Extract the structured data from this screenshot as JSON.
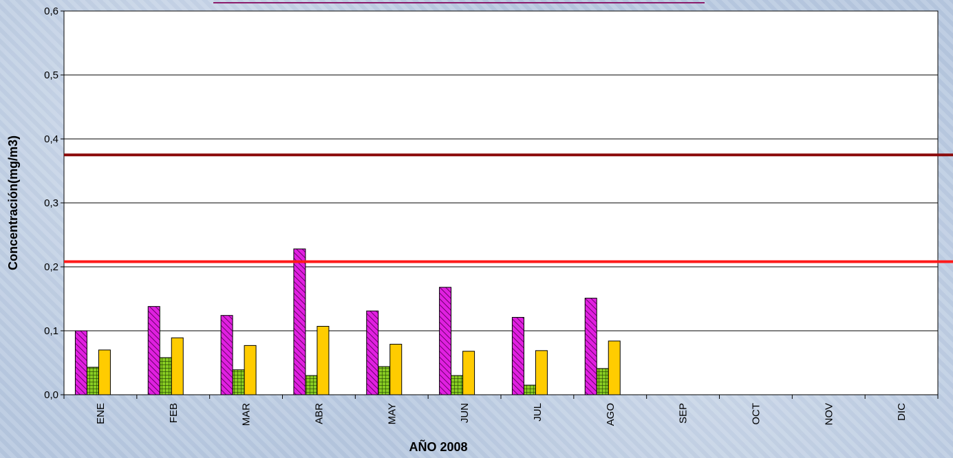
{
  "chart_data": {
    "type": "bar",
    "xlabel": "AÑO 2008",
    "ylabel": "Concentración(mg/m3)",
    "ylim": [
      0,
      0.6
    ],
    "yticks": [
      0,
      0.1,
      0.2,
      0.3,
      0.4,
      0.5,
      0.6
    ],
    "ytick_labels": [
      "0,0",
      "0,1",
      "0,2",
      "0,3",
      "0,4",
      "0,5",
      "0,6"
    ],
    "categories": [
      "ENE",
      "FEB",
      "MAR",
      "ABR",
      "MAY",
      "JUN",
      "JUL",
      "AGO",
      "SEP",
      "OCT",
      "NOV",
      "DIC"
    ],
    "series": [
      {
        "color": "#e020e0",
        "pattern": "diagonal-hatch",
        "values": [
          0.1,
          0.138,
          0.124,
          0.228,
          0.131,
          0.168,
          0.121,
          0.151,
          null,
          null,
          null,
          null
        ]
      },
      {
        "color": "#88cc22",
        "pattern": "grid-check",
        "values": [
          0.043,
          0.058,
          0.039,
          0.03,
          0.044,
          0.03,
          0.015,
          0.041,
          null,
          null,
          null,
          null
        ]
      },
      {
        "color": "#ffcc00",
        "pattern": "solid",
        "values": [
          0.07,
          0.089,
          0.077,
          0.107,
          0.079,
          0.068,
          0.069,
          0.084,
          null,
          null,
          null,
          null
        ]
      }
    ],
    "reference_lines": [
      {
        "value": 0.375,
        "color": "#8b0a0a"
      },
      {
        "value": 0.208,
        "color": "#ff1a1a"
      }
    ],
    "grid": true,
    "legend": "none"
  }
}
